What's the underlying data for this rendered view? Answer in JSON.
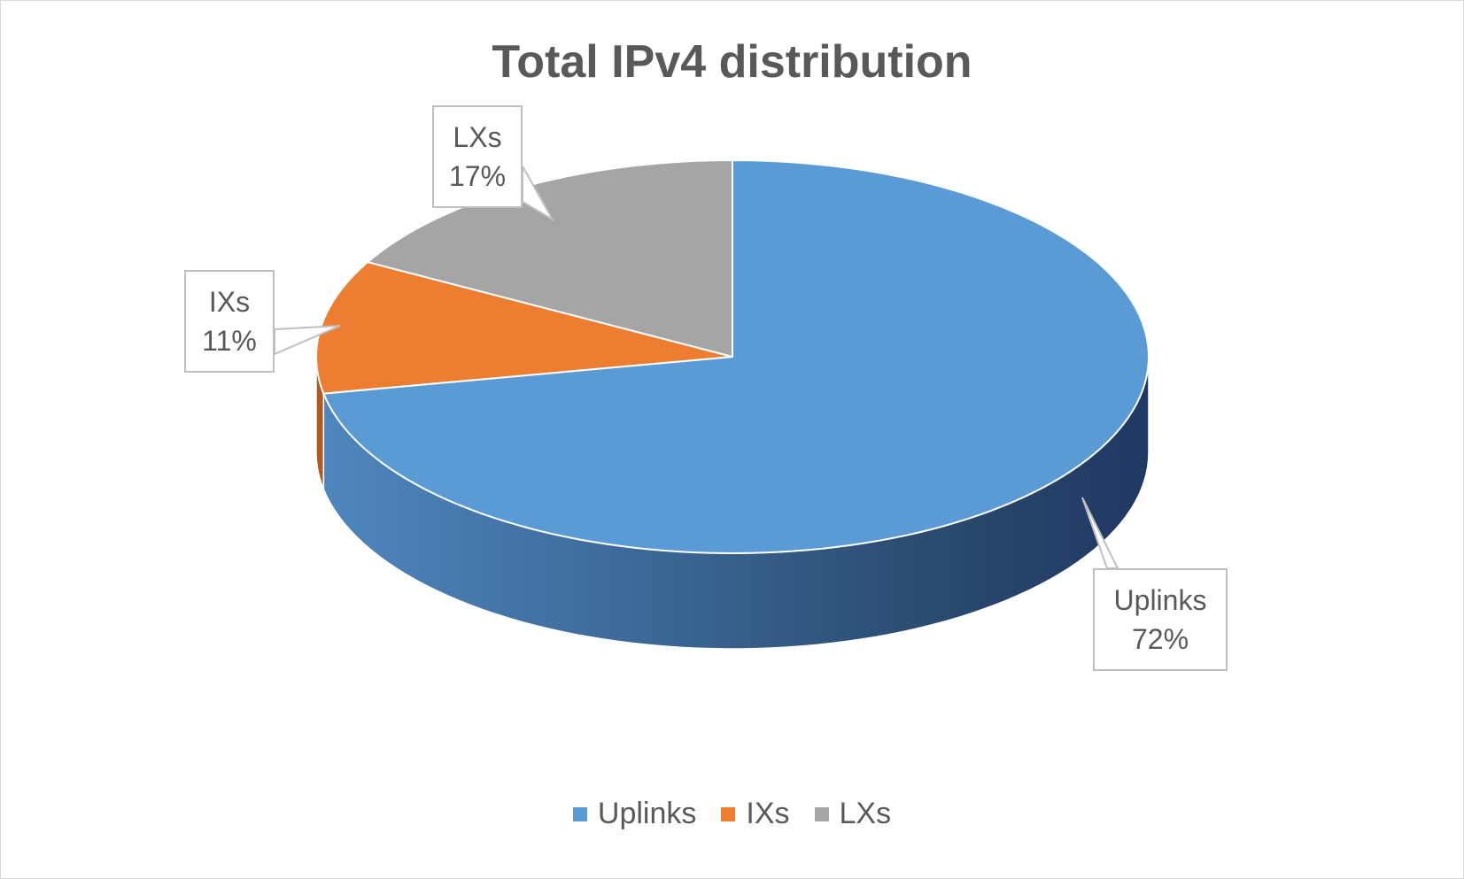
{
  "chart_data": {
    "type": "pie",
    "title": "Total IPv4 distribution",
    "slices": [
      {
        "label": "Uplinks",
        "value": 72,
        "display": "72%",
        "color": "#5b9bd5",
        "side_dark": "#203864",
        "side_light": "#4f86be"
      },
      {
        "label": "IXs",
        "value": 11,
        "display": "11%",
        "color": "#ed7d31",
        "side_dark": "#ae5a21",
        "side_light": "#ed7d31"
      },
      {
        "label": "LXs",
        "value": 17,
        "display": "17%",
        "color": "#a5a5a5",
        "side_dark": "#7b7b7b",
        "side_light": "#a5a5a5"
      }
    ],
    "legend_position": "bottom",
    "style": "3d"
  }
}
